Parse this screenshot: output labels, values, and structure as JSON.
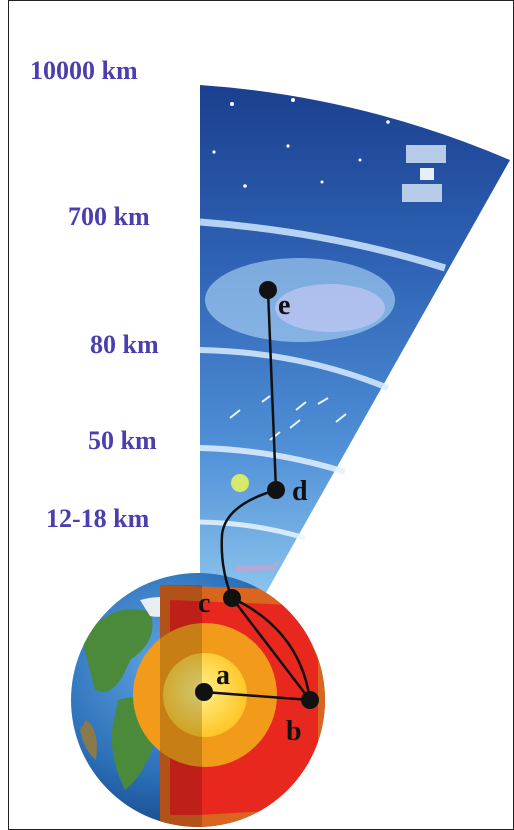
{
  "altitude_labels": [
    "10000 km",
    "700 km",
    "80 km",
    "50 km",
    "12-18 km"
  ],
  "points": [
    "a",
    "b",
    "c",
    "d",
    "e"
  ],
  "colors": {
    "label": "#4b3fb0",
    "sky_top": "#1b3f8f",
    "sky_bottom": "#8ec6ee",
    "crust": "#d9651f",
    "mantle": "#e8281f",
    "outer_core": "#f29a1a",
    "inner_core": "#ffd23a",
    "ocean": "#2a6fb8",
    "land": "#4a8a3a"
  }
}
